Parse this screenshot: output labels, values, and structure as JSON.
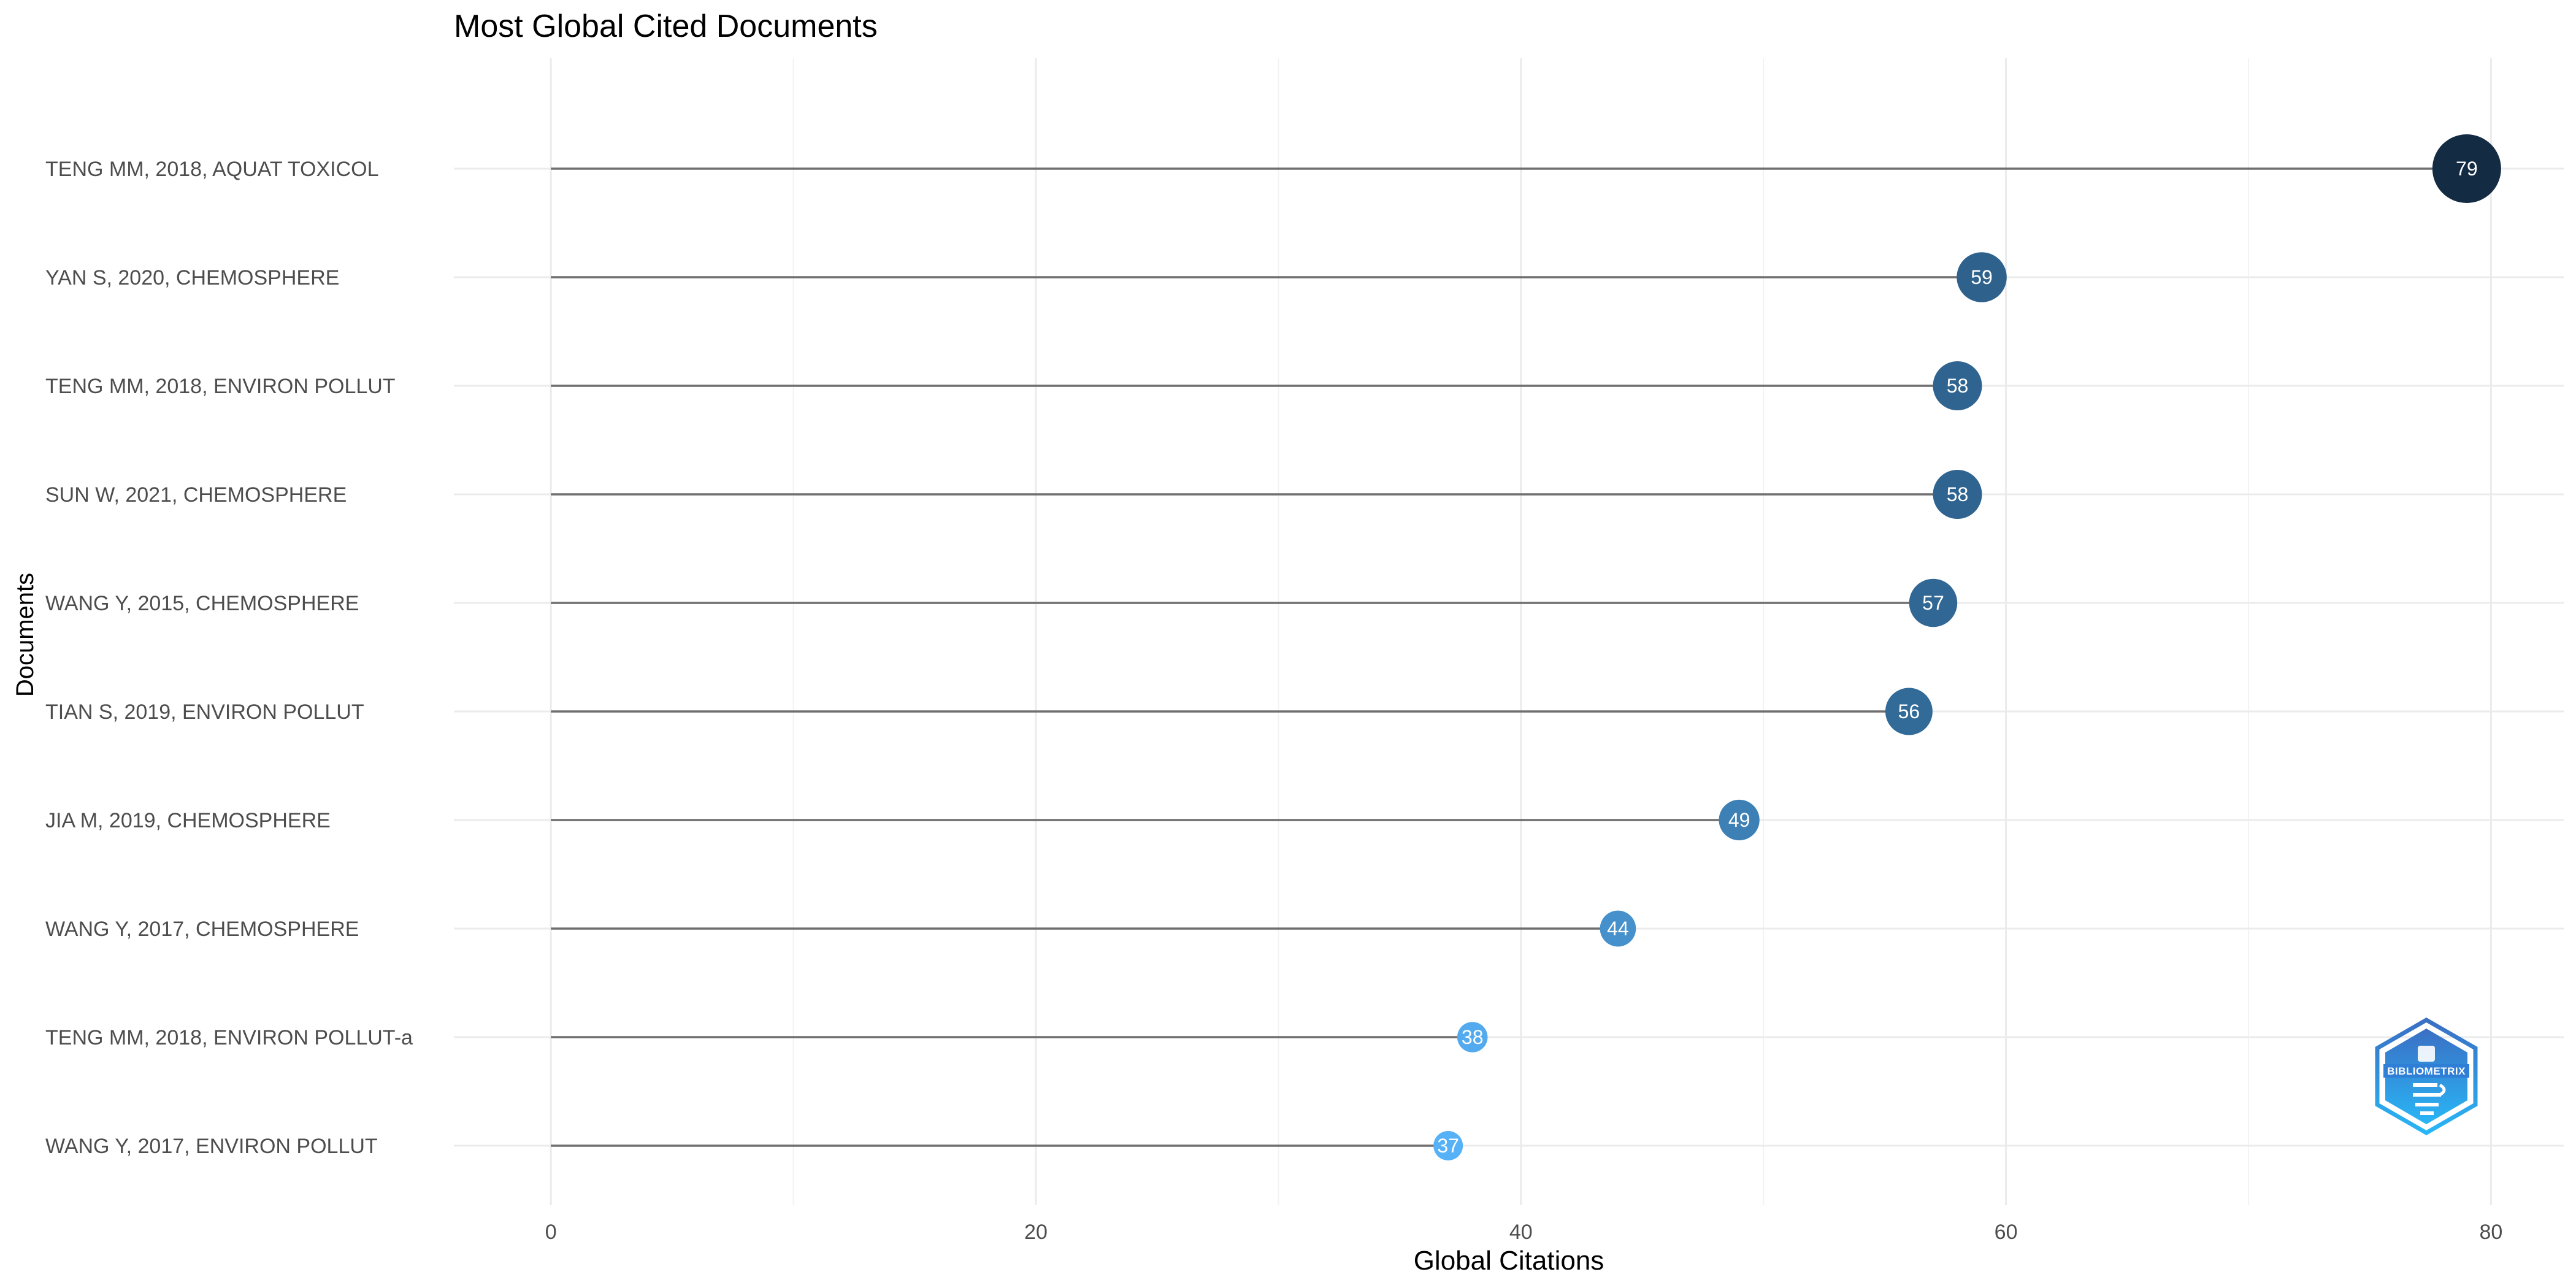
{
  "chart_data": {
    "type": "lollipop",
    "title": "Most Global Cited Documents",
    "xlabel": "Global Citations",
    "ylabel": "Documents",
    "xlim": [
      -4,
      83
    ],
    "x_ticks": [
      0,
      20,
      40,
      60,
      80
    ],
    "grid": true,
    "categories": [
      "TENG MM, 2018, AQUAT TOXICOL",
      "YAN S, 2020, CHEMOSPHERE",
      "TENG MM, 2018, ENVIRON POLLUT",
      "SUN W, 2021, CHEMOSPHERE",
      "WANG Y, 2015, CHEMOSPHERE",
      "TIAN S, 2019, ENVIRON POLLUT",
      "JIA M, 2019, CHEMOSPHERE",
      "WANG Y, 2017, CHEMOSPHERE",
      "TENG MM, 2018, ENVIRON POLLUT-a",
      "WANG Y, 2017, ENVIRON POLLUT"
    ],
    "values": [
      79,
      59,
      58,
      58,
      57,
      56,
      49,
      44,
      38,
      37
    ],
    "color_scale": {
      "low": "#56b1f7",
      "high": "#132b43"
    }
  },
  "logo": {
    "text": "BIBLIOMETRIX",
    "colors": {
      "outer": "#3a78c9",
      "inner": "#1e8fe0"
    }
  }
}
